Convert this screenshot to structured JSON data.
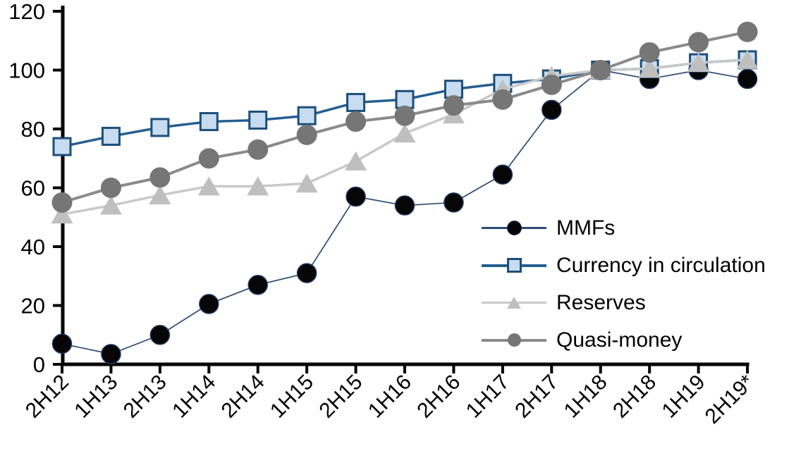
{
  "chart_data": {
    "type": "line",
    "categories": [
      "2H12",
      "1H13",
      "2H13",
      "1H14",
      "2H14",
      "1H15",
      "2H15",
      "1H16",
      "2H16",
      "1H17",
      "2H17",
      "1H18",
      "2H18",
      "1H19",
      "2H19*"
    ],
    "series": [
      {
        "name": "MMFs",
        "marker": "circle",
        "marker_color": "#060606",
        "marker_stroke": "#1F3864",
        "line_color": "#2B4A73",
        "line_width": 1.7,
        "values": [
          7,
          3.5,
          10,
          20.5,
          27,
          31,
          57,
          54,
          55,
          64.5,
          86.5,
          100,
          97,
          100,
          97
        ]
      },
      {
        "name": "Currency in circulation",
        "marker": "square",
        "marker_color": "#C7DCF0",
        "marker_stroke": "#1D4E79",
        "line_color": "#255E91",
        "line_width": 3.5,
        "values": [
          74,
          77.5,
          80.5,
          82.5,
          83,
          84.5,
          89,
          90,
          93.5,
          95.5,
          97,
          100,
          100.5,
          102.5,
          103.5
        ]
      },
      {
        "name": "Reserves",
        "marker": "triangle",
        "marker_color": "#BFBFBF",
        "marker_stroke": "#BFBFBF",
        "line_color": "#C9C9C9",
        "line_width": 3.5,
        "values": [
          51,
          54,
          57.5,
          60.5,
          60.5,
          61.5,
          69,
          78.5,
          85,
          93.5,
          98,
          100,
          100.5,
          102.5,
          103.5
        ]
      },
      {
        "name": "Quasi-money",
        "marker": "circle",
        "marker_color": "#767676",
        "marker_stroke": "#767676",
        "line_color": "#8A8A8A",
        "line_width": 4,
        "values": [
          55,
          60,
          63.5,
          70,
          73,
          78,
          82.5,
          84.5,
          88,
          90,
          95,
          100,
          106,
          109.5,
          113
        ]
      }
    ],
    "ylim": [
      0,
      120
    ],
    "y_ticks": [
      0,
      20,
      40,
      60,
      80,
      100,
      120
    ],
    "grid": false,
    "axis_color": "#000000",
    "legend_position": "inside-right",
    "legend_entries": [
      "MMFs",
      "Currency in circulation",
      "Reserves",
      "Quasi-money"
    ],
    "xlabel": "",
    "ylabel": ""
  }
}
